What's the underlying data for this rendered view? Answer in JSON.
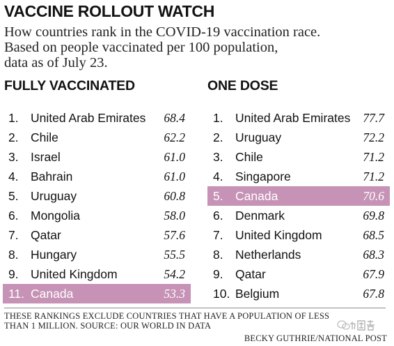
{
  "title": "VACCINE ROLLOUT WATCH",
  "subtitle_lines": [
    "How countries rank in the COVID-19 vaccination race.",
    "Based on people vaccinated per 100 population,",
    "data as of July 23."
  ],
  "footnote_lines": [
    "THESE RANKINGS EXCLUDE COUNTRIES THAT HAVE A POPULATION OF LESS",
    "THAN 1 MILLION. SOURCE: OUR WORLD IN DATA"
  ],
  "credit": "BECKY GUTHRIE/NATIONAL POST",
  "watermark_text": "加国君",
  "colors": {
    "highlight": "#c692b5",
    "highlight_text": "#ffffff"
  },
  "chart_data": [
    {
      "type": "table",
      "title": "FULLY VACCINATED",
      "rows": [
        {
          "rank": "1.",
          "country": "United Arab Emirates",
          "value": "68.4",
          "highlight": false
        },
        {
          "rank": "2.",
          "country": "Chile",
          "value": "62.2",
          "highlight": false
        },
        {
          "rank": "3.",
          "country": "Israel",
          "value": "61.0",
          "highlight": false
        },
        {
          "rank": "4.",
          "country": "Bahrain",
          "value": "61.0",
          "highlight": false
        },
        {
          "rank": "5.",
          "country": "Uruguay",
          "value": "60.8",
          "highlight": false
        },
        {
          "rank": "6.",
          "country": "Mongolia",
          "value": "58.0",
          "highlight": false
        },
        {
          "rank": "7.",
          "country": "Qatar",
          "value": "57.6",
          "highlight": false
        },
        {
          "rank": "8.",
          "country": "Hungary",
          "value": "55.5",
          "highlight": false
        },
        {
          "rank": "9.",
          "country": "United Kingdom",
          "value": "54.2",
          "highlight": false
        },
        {
          "rank": "11.",
          "country": "Canada",
          "value": "53.3",
          "highlight": true
        }
      ]
    },
    {
      "type": "table",
      "title": "ONE DOSE",
      "rows": [
        {
          "rank": "1.",
          "country": "United Arab Emirates",
          "value": "77.7",
          "highlight": false
        },
        {
          "rank": "2.",
          "country": "Uruguay",
          "value": "72.2",
          "highlight": false
        },
        {
          "rank": "3.",
          "country": "Chile",
          "value": "71.2",
          "highlight": false
        },
        {
          "rank": "4.",
          "country": "Singapore",
          "value": "71.2",
          "highlight": false
        },
        {
          "rank": "5.",
          "country": "Canada",
          "value": "70.6",
          "highlight": true
        },
        {
          "rank": "6.",
          "country": "Denmark",
          "value": "69.8",
          "highlight": false
        },
        {
          "rank": "7.",
          "country": "United Kingdom",
          "value": "68.5",
          "highlight": false
        },
        {
          "rank": "8.",
          "country": "Netherlands",
          "value": "68.3",
          "highlight": false
        },
        {
          "rank": "9.",
          "country": "Qatar",
          "value": "67.9",
          "highlight": false
        },
        {
          "rank": "10.",
          "country": "Belgium",
          "value": "67.8",
          "highlight": false
        }
      ]
    }
  ]
}
